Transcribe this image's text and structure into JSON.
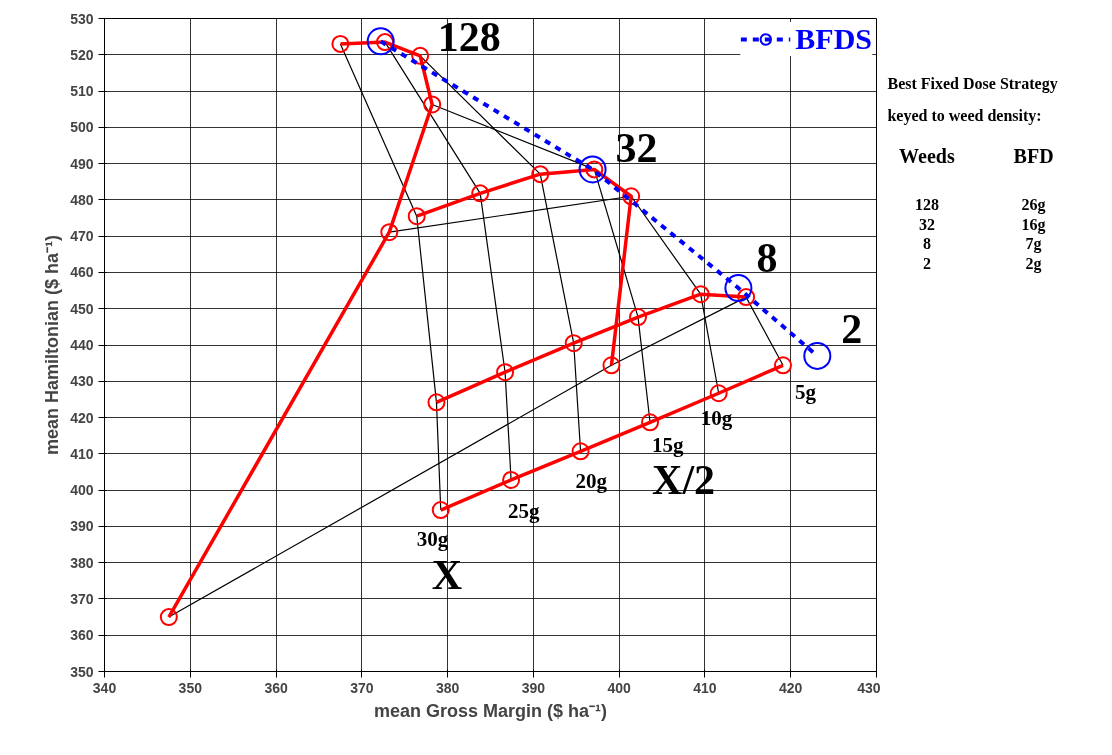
{
  "chart_data": {
    "type": "line",
    "xlabel": "mean Gross Margin ($ ha⁻¹)",
    "ylabel": "mean Hamiltonian ($ ha⁻¹)",
    "xlim": [
      340,
      430
    ],
    "xticks": [
      340,
      350,
      360,
      370,
      380,
      390,
      400,
      410,
      420,
      430
    ],
    "ylim": [
      350,
      530
    ],
    "yticks": [
      350,
      360,
      370,
      380,
      390,
      400,
      410,
      420,
      430,
      440,
      450,
      460,
      470,
      480,
      490,
      500,
      510,
      520,
      530
    ],
    "grid": true,
    "legend": "top right",
    "series": [
      {
        "color": "#000000",
        "marker": "none",
        "line_style": "solid",
        "x": [
          367.5,
          376.4,
          378.7,
          379.2
        ],
        "values": [
          523.0,
          475.5,
          424.2,
          394.5
        ]
      },
      {
        "color": "#000000",
        "marker": "none",
        "line_style": "solid",
        "x": [
          372.7,
          383.8,
          386.7,
          387.4
        ],
        "values": [
          523.5,
          481.8,
          432.5,
          402.8
        ]
      },
      {
        "color": "#000000",
        "marker": "none",
        "line_style": "solid",
        "x": [
          376.8,
          390.8,
          394.7,
          395.5
        ],
        "values": [
          519.7,
          487.1,
          440.5,
          410.7
        ]
      },
      {
        "color": "#000000",
        "marker": "none",
        "line_style": "solid",
        "x": [
          378.2,
          397.1,
          402.2,
          403.6
        ],
        "values": [
          506.3,
          488.4,
          447.7,
          418.7
        ]
      },
      {
        "color": "#000000",
        "marker": "none",
        "line_style": "solid",
        "x": [
          373.2,
          401.4,
          409.5,
          411.6
        ],
        "values": [
          471.1,
          481.0,
          454.0,
          426.7
        ]
      },
      {
        "color": "#000000",
        "marker": "none",
        "line_style": "solid",
        "x": [
          347.5,
          399.1,
          414.8,
          419.1
        ],
        "values": [
          365.0,
          434.4,
          453.2,
          434.4
        ]
      },
      {
        "color": "#ff0000",
        "marker": "circle",
        "line_style": "solid",
        "x": [
          367.5,
          372.7,
          376.8,
          378.2,
          373.2,
          347.5
        ],
        "values": [
          523.0,
          523.5,
          519.7,
          506.3,
          471.1,
          365.0
        ]
      },
      {
        "color": "#ff0000",
        "marker": "circle",
        "line_style": "solid",
        "x": [
          376.4,
          383.8,
          390.8,
          397.1,
          401.4,
          399.1
        ],
        "values": [
          475.5,
          481.8,
          487.1,
          488.4,
          481.0,
          434.4
        ]
      },
      {
        "color": "#ff0000",
        "marker": "circle",
        "line_style": "solid",
        "x": [
          378.7,
          386.7,
          394.7,
          402.2,
          409.5,
          414.8
        ],
        "values": [
          424.2,
          432.5,
          440.5,
          447.7,
          454.0,
          453.2
        ]
      },
      {
        "color": "#ff0000",
        "marker": "circle",
        "line_style": "solid",
        "x": [
          379.2,
          387.4,
          395.5,
          403.6,
          411.6,
          419.1
        ],
        "values": [
          394.5,
          402.8,
          410.7,
          418.7,
          426.7,
          434.4
        ]
      },
      {
        "name": "BFDS",
        "color": "#0000ff",
        "marker": "circle",
        "line_style": "dashed",
        "x": [
          372.2,
          396.9,
          413.9,
          423.1
        ],
        "values": [
          523.7,
          488.4,
          455.7,
          437.0
        ]
      }
    ],
    "annotations": [
      {
        "text": "128",
        "x": 372.2,
        "y": 523.7
      },
      {
        "text": "32",
        "x": 396.9,
        "y": 488.4
      },
      {
        "text": "8",
        "x": 413.9,
        "y": 455.7
      },
      {
        "text": "2",
        "x": 423.1,
        "y": 437.0
      },
      {
        "text": "5g",
        "x": 419.1,
        "y": 434.4
      },
      {
        "text": "10g",
        "x": 411.6,
        "y": 426.7
      },
      {
        "text": "15g",
        "x": 403.6,
        "y": 418.7
      },
      {
        "text": "20g",
        "x": 395.5,
        "y": 410.7
      },
      {
        "text": "25g",
        "x": 387.4,
        "y": 402.8
      },
      {
        "text": "30g",
        "x": 379.2,
        "y": 394.5
      },
      {
        "text": "X/2",
        "x": 403.6,
        "y": 418.7
      },
      {
        "text": "X",
        "x": 379.2,
        "y": 394.5
      },
      "Best Fixed Dose Strategy",
      "keyed to weed density:",
      "Weeds",
      "BFD",
      "128",
      "26g",
      "32",
      "16g",
      "8",
      "7g",
      "2",
      "2g"
    ]
  }
}
